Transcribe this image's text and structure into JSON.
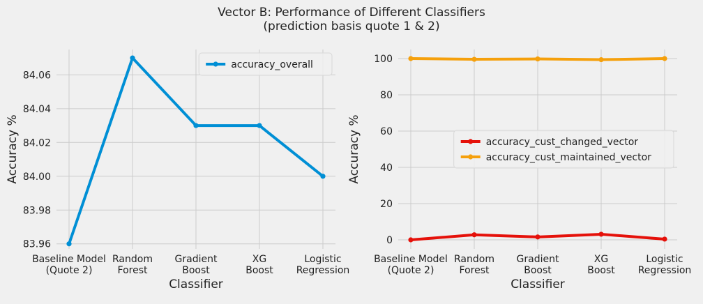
{
  "figure": {
    "title_line1": "Vector B: Performance of Different Classifiers",
    "title_line2": "(prediction basis quote 1 & 2)"
  },
  "chart_data": [
    {
      "type": "line",
      "categories": [
        [
          "Baseline Model",
          "(Quote 2)"
        ],
        [
          "Random",
          "Forest"
        ],
        [
          "Gradient",
          "Boost"
        ],
        [
          "XG",
          "Boost"
        ],
        [
          "Logistic",
          "Regression"
        ]
      ],
      "xlabel": "Classifier",
      "ylabel": "Accuracy %",
      "ylim": [
        83.957,
        84.075
      ],
      "yticks": [
        "83.96",
        "83.98",
        "84.00",
        "84.02",
        "84.04",
        "84.06"
      ],
      "ytick_values": [
        83.96,
        83.98,
        84.0,
        84.02,
        84.04,
        84.06
      ],
      "grid": true,
      "legend_position": "top-right",
      "series": [
        {
          "name": "accuracy_overall",
          "color": "#008fd5",
          "values": [
            83.96,
            84.07,
            84.03,
            84.03,
            84.0
          ]
        }
      ]
    },
    {
      "type": "line",
      "categories": [
        [
          "Baseline Model",
          "(Quote 2)"
        ],
        [
          "Random",
          "Forest"
        ],
        [
          "Gradient",
          "Boost"
        ],
        [
          "XG",
          "Boost"
        ],
        [
          "Logistic",
          "Regression"
        ]
      ],
      "xlabel": "Classifier",
      "ylabel": "Accuracy %",
      "ylim": [
        -5,
        105
      ],
      "yticks": [
        "0",
        "20",
        "40",
        "60",
        "80",
        "100"
      ],
      "ytick_values": [
        0,
        20,
        40,
        60,
        80,
        100
      ],
      "grid": true,
      "legend_position": "center-right",
      "series": [
        {
          "name": "accuracy_cust_changed_vector",
          "color": "#e5110a",
          "values": [
            0.0,
            2.8,
            1.6,
            3.1,
            0.4
          ]
        },
        {
          "name": "accuracy_cust_maintained_vector",
          "color": "#f5a00c",
          "values": [
            100.0,
            99.6,
            99.8,
            99.4,
            100.0
          ]
        }
      ]
    }
  ]
}
